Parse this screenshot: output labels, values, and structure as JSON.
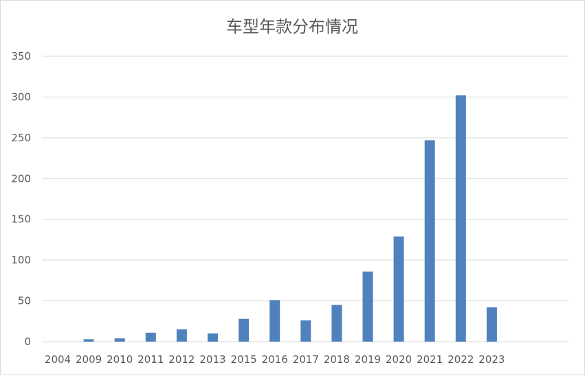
{
  "chart_data": {
    "type": "bar",
    "title": "车型年款分布情况",
    "xlabel": "",
    "ylabel": "",
    "categories": [
      "2004",
      "2009",
      "2010",
      "2011",
      "2012",
      "2013",
      "2015",
      "2016",
      "2017",
      "2018",
      "2019",
      "2020",
      "2021",
      "2022",
      "2023"
    ],
    "values": [
      0,
      3,
      4,
      11,
      15,
      10,
      28,
      51,
      26,
      45,
      86,
      129,
      247,
      302,
      42
    ],
    "ylim": [
      0,
      350
    ],
    "yticks": [
      0,
      50,
      100,
      150,
      200,
      250,
      300,
      350
    ],
    "grid": true,
    "legend": "none",
    "bar_color": "#4f81bd",
    "grid_color": "#d9d9d9"
  }
}
